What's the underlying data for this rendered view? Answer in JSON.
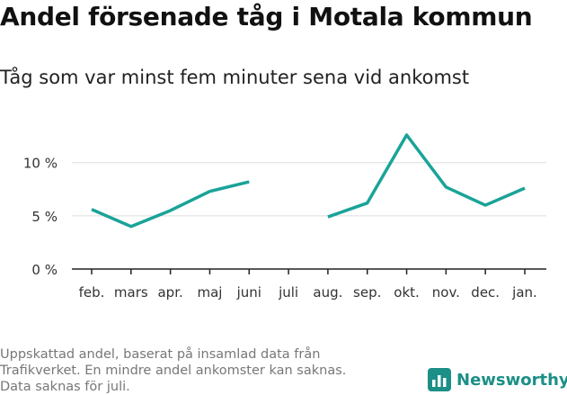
{
  "title": "Andel försenade tåg i Motala kommun",
  "subtitle": "Tåg som var minst fem minuter sena vid ankomst",
  "footer": {
    "line1": "Uppskattad andel, baserat på insamlad data från",
    "line2": "Trafikverket. En mindre andel ankomster kan saknas.",
    "line3": "Data saknas för juli."
  },
  "brand": {
    "name": "Newsworthy",
    "color": "#1c8f87"
  },
  "colors": {
    "line": "#1aa398",
    "grid": "#dddddd",
    "axis": "#222222"
  },
  "chart_data": {
    "type": "line",
    "categories": [
      "feb.",
      "mars",
      "apr.",
      "maj",
      "juni",
      "juli",
      "aug.",
      "sep.",
      "okt.",
      "nov.",
      "dec.",
      "jan."
    ],
    "series": [
      {
        "values": [
          5.6,
          4.0,
          5.5,
          7.3,
          8.2,
          null,
          4.9,
          6.2,
          12.6,
          7.7,
          6.0,
          7.6
        ]
      }
    ],
    "yticks": [
      0,
      5,
      10
    ],
    "ytick_labels": [
      "0 %",
      "5 %",
      "10 %"
    ],
    "ylim": [
      0,
      12.6
    ],
    "grid": true,
    "xlabel": "",
    "ylabel": ""
  }
}
